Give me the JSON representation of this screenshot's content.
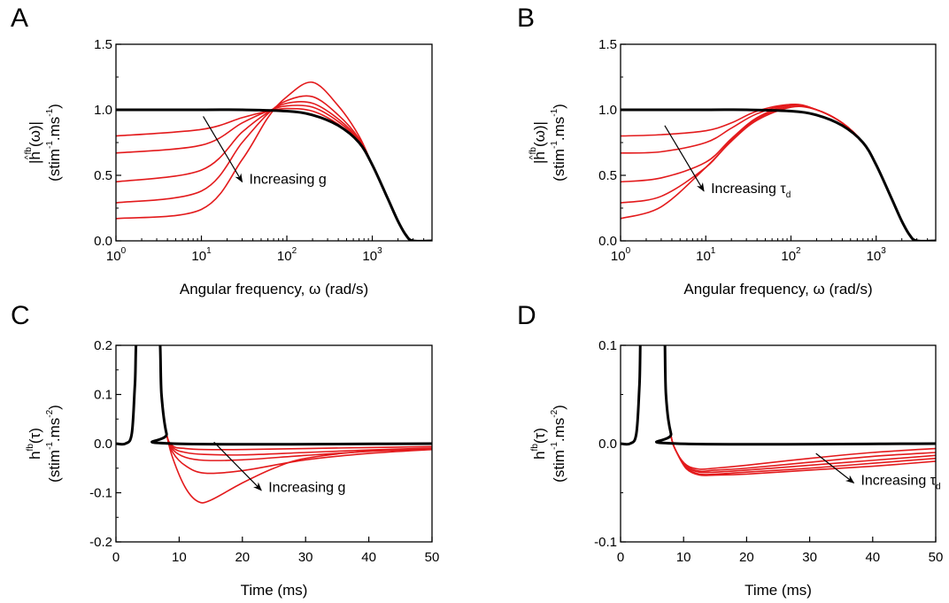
{
  "colors": {
    "baseline": "#000000",
    "family": "#e31a1c",
    "axis": "#000000"
  },
  "chart_data": [
    {
      "panel": "A",
      "type": "line",
      "xscale": "log",
      "xlim": [
        1,
        5000
      ],
      "ylim": [
        0,
        1.5
      ],
      "xticks": [
        1,
        10,
        100,
        1000
      ],
      "xtick_labels": [
        {
          "base": "10",
          "exp": "0"
        },
        {
          "base": "10",
          "exp": "1"
        },
        {
          "base": "10",
          "exp": "2"
        },
        {
          "base": "10",
          "exp": "3"
        }
      ],
      "yticks": [
        "0.0",
        "0.5",
        "1.0",
        "1.5"
      ],
      "xlabel": "Angular frequency, ω (rad/s)",
      "ylabel_line1": {
        "pre": "|h",
        "hat": "^",
        "sup": "fb",
        "post": "(ω)|"
      },
      "ylabel_line2": {
        "pre": "(stim",
        "sup1": "-1",
        "mid": ".ms",
        "sup2": "-1",
        "post": ")"
      },
      "annotation": {
        "text": "Increasing g",
        "sub": "",
        "arrow_from": [
          10.5,
          0.95
        ],
        "arrow_to": [
          30,
          0.45
        ]
      },
      "grid": false,
      "series": [
        {
          "role": "baseline",
          "x": [
            1,
            10,
            30,
            100,
            200,
            400,
            700,
            1000,
            1500,
            2000,
            2500,
            3000,
            5000
          ],
          "y": [
            1.0,
            1.0,
            1.0,
            0.99,
            0.96,
            0.88,
            0.75,
            0.58,
            0.33,
            0.15,
            0.04,
            0.0,
            0.0
          ]
        },
        {
          "role": "family",
          "x": [
            1,
            10,
            30,
            60,
            100,
            200,
            400,
            700,
            1000,
            1500,
            2000,
            2500,
            3000,
            5000
          ],
          "y": [
            0.8,
            0.85,
            0.94,
            0.99,
            1.01,
            0.99,
            0.89,
            0.75,
            0.58,
            0.33,
            0.15,
            0.04,
            0.0,
            0.0
          ]
        },
        {
          "role": "family",
          "x": [
            1,
            10,
            30,
            60,
            100,
            200,
            400,
            700,
            1000,
            1500,
            2000,
            2500,
            3000,
            5000
          ],
          "y": [
            0.67,
            0.73,
            0.9,
            0.99,
            1.03,
            1.02,
            0.91,
            0.76,
            0.58,
            0.33,
            0.15,
            0.04,
            0.0,
            0.0
          ]
        },
        {
          "role": "family",
          "x": [
            1,
            10,
            30,
            60,
            100,
            200,
            400,
            700,
            1000,
            1500,
            2000,
            2500,
            3000,
            5000
          ],
          "y": [
            0.45,
            0.54,
            0.83,
            0.98,
            1.05,
            1.05,
            0.93,
            0.77,
            0.58,
            0.33,
            0.15,
            0.04,
            0.0,
            0.0
          ]
        },
        {
          "role": "family",
          "x": [
            1,
            10,
            30,
            60,
            100,
            200,
            400,
            700,
            1000,
            1500,
            2000,
            2500,
            3000,
            5000
          ],
          "y": [
            0.29,
            0.38,
            0.75,
            0.97,
            1.07,
            1.1,
            0.96,
            0.78,
            0.58,
            0.33,
            0.15,
            0.04,
            0.0,
            0.0
          ]
        },
        {
          "role": "family",
          "x": [
            1,
            10,
            30,
            60,
            100,
            200,
            400,
            700,
            1000,
            1500,
            2000,
            2500,
            3000,
            5000
          ],
          "y": [
            0.17,
            0.24,
            0.62,
            0.94,
            1.1,
            1.21,
            1.03,
            0.8,
            0.58,
            0.33,
            0.15,
            0.04,
            0.0,
            0.0
          ]
        }
      ]
    },
    {
      "panel": "B",
      "type": "line",
      "xscale": "log",
      "xlim": [
        1,
        5000
      ],
      "ylim": [
        0,
        1.5
      ],
      "xticks": [
        1,
        10,
        100,
        1000
      ],
      "xtick_labels": [
        {
          "base": "10",
          "exp": "0"
        },
        {
          "base": "10",
          "exp": "1"
        },
        {
          "base": "10",
          "exp": "2"
        },
        {
          "base": "10",
          "exp": "3"
        }
      ],
      "yticks": [
        "0.0",
        "0.5",
        "1.0",
        "1.5"
      ],
      "xlabel": "Angular frequency, ω (rad/s)",
      "ylabel_line1": {
        "pre": "|h",
        "hat": "^",
        "sup": "fb",
        "post": "(ω)|"
      },
      "ylabel_line2": {
        "pre": "(stim",
        "sup1": "-1",
        "mid": ".ms",
        "sup2": "-1",
        "post": ")"
      },
      "annotation": {
        "text": "Increasing τ",
        "sub": "d",
        "arrow_from": [
          3.3,
          0.88
        ],
        "arrow_to": [
          9.5,
          0.38
        ]
      },
      "grid": false,
      "series": [
        {
          "role": "baseline",
          "x": [
            1,
            10,
            30,
            100,
            200,
            400,
            700,
            1000,
            1500,
            2000,
            2500,
            3000,
            5000
          ],
          "y": [
            1.0,
            1.0,
            1.0,
            0.99,
            0.96,
            0.88,
            0.75,
            0.58,
            0.33,
            0.15,
            0.04,
            0.0,
            0.0
          ]
        },
        {
          "role": "family",
          "x": [
            1,
            3,
            10,
            20,
            40,
            100,
            200,
            400,
            700,
            1000,
            1500,
            2000,
            2500,
            3000,
            5000
          ],
          "y": [
            0.8,
            0.81,
            0.84,
            0.9,
            0.99,
            1.04,
            1.0,
            0.9,
            0.75,
            0.58,
            0.33,
            0.15,
            0.04,
            0.0,
            0.0
          ]
        },
        {
          "role": "family",
          "x": [
            1,
            3,
            10,
            20,
            40,
            100,
            200,
            400,
            700,
            1000,
            1500,
            2000,
            2500,
            3000,
            5000
          ],
          "y": [
            0.67,
            0.68,
            0.75,
            0.86,
            0.97,
            1.04,
            1.0,
            0.9,
            0.75,
            0.58,
            0.33,
            0.15,
            0.04,
            0.0,
            0.0
          ]
        },
        {
          "role": "family",
          "x": [
            1,
            3,
            10,
            20,
            40,
            100,
            200,
            400,
            700,
            1000,
            1500,
            2000,
            2500,
            3000,
            5000
          ],
          "y": [
            0.45,
            0.48,
            0.6,
            0.78,
            0.94,
            1.04,
            1.0,
            0.9,
            0.75,
            0.58,
            0.33,
            0.15,
            0.04,
            0.0,
            0.0
          ]
        },
        {
          "role": "family",
          "x": [
            1,
            3,
            10,
            20,
            40,
            100,
            200,
            400,
            700,
            1000,
            1500,
            2000,
            2500,
            3000,
            5000
          ],
          "y": [
            0.29,
            0.34,
            0.56,
            0.77,
            0.93,
            1.03,
            1.0,
            0.9,
            0.75,
            0.58,
            0.33,
            0.15,
            0.04,
            0.0,
            0.0
          ]
        },
        {
          "role": "family",
          "x": [
            1,
            3,
            10,
            20,
            40,
            100,
            200,
            400,
            700,
            1000,
            1500,
            2000,
            2500,
            3000,
            5000
          ],
          "y": [
            0.17,
            0.26,
            0.56,
            0.76,
            0.92,
            1.02,
            1.0,
            0.9,
            0.75,
            0.58,
            0.33,
            0.15,
            0.04,
            0.0,
            0.0
          ]
        }
      ]
    },
    {
      "panel": "C",
      "type": "line",
      "xscale": "linear",
      "xlim": [
        0,
        50
      ],
      "ylim": [
        -0.2,
        0.2
      ],
      "xticks": [
        0,
        10,
        20,
        30,
        40,
        50
      ],
      "xtick_labels": [
        "0",
        "10",
        "20",
        "30",
        "40",
        "50"
      ],
      "yticks": [
        "-0.2",
        "-0.1",
        "0.0",
        "0.1",
        "0.2"
      ],
      "xlabel": "Time (ms)",
      "ylabel_line1": {
        "pre": "h",
        "sup": "fb",
        "post": "(τ)"
      },
      "ylabel_line2": {
        "pre": "(stim",
        "sup1": "-1",
        "mid": ".ms",
        "sup2": "-2",
        "post": ")"
      },
      "annotation": {
        "text": "Increasing g",
        "sub": "",
        "arrow_from": [
          15.5,
          0.003
        ],
        "arrow_to": [
          23,
          -0.095
        ]
      },
      "grid": false,
      "series": [
        {
          "role": "baseline",
          "x": [
            0,
            1.5,
            2.5,
            3.0,
            3.6,
            6.6,
            7.2,
            8.0,
            9.0,
            50
          ],
          "y": [
            0,
            0,
            0.02,
            0.12,
            0.25,
            0.25,
            0.1,
            0.02,
            0.0,
            0.0
          ]
        },
        {
          "role": "family",
          "x": [
            0,
            1.5,
            2.5,
            3.0,
            3.6,
            6.6,
            7.2,
            8.0,
            9.0,
            11,
            14,
            20,
            30,
            40,
            50
          ],
          "y": [
            0,
            0,
            0.02,
            0.12,
            0.25,
            0.25,
            0.1,
            0.02,
            -0.005,
            -0.01,
            -0.012,
            -0.012,
            -0.01,
            -0.008,
            -0.006
          ]
        },
        {
          "role": "family",
          "x": [
            0,
            1.5,
            2.5,
            3.0,
            3.6,
            6.6,
            7.2,
            8.0,
            9.0,
            11,
            14,
            20,
            30,
            40,
            50
          ],
          "y": [
            0,
            0,
            0.02,
            0.12,
            0.25,
            0.25,
            0.1,
            0.02,
            -0.008,
            -0.018,
            -0.022,
            -0.023,
            -0.018,
            -0.013,
            -0.009
          ]
        },
        {
          "role": "family",
          "x": [
            0,
            1.5,
            2.5,
            3.0,
            3.6,
            6.6,
            7.2,
            8.0,
            9.0,
            11,
            14,
            20,
            30,
            40,
            50
          ],
          "y": [
            0,
            0,
            0.02,
            0.12,
            0.25,
            0.25,
            0.1,
            0.02,
            -0.012,
            -0.028,
            -0.034,
            -0.033,
            -0.024,
            -0.016,
            -0.011
          ]
        },
        {
          "role": "family",
          "x": [
            0,
            1.5,
            2.5,
            3.0,
            3.6,
            6.6,
            7.2,
            8.0,
            9.0,
            11,
            14,
            20,
            30,
            40,
            50
          ],
          "y": [
            0,
            0,
            0.02,
            0.12,
            0.25,
            0.25,
            0.1,
            0.02,
            -0.018,
            -0.045,
            -0.06,
            -0.055,
            -0.033,
            -0.02,
            -0.012
          ]
        },
        {
          "role": "family",
          "x": [
            0,
            1.5,
            2.5,
            3.0,
            3.6,
            6.6,
            7.2,
            8.0,
            9.0,
            11,
            13,
            15,
            20,
            25,
            30,
            40,
            50
          ],
          "y": [
            0,
            0,
            0.02,
            0.12,
            0.25,
            0.25,
            0.1,
            0.02,
            -0.03,
            -0.09,
            -0.118,
            -0.115,
            -0.08,
            -0.05,
            -0.03,
            -0.015,
            -0.01
          ]
        }
      ]
    },
    {
      "panel": "D",
      "type": "line",
      "xscale": "linear",
      "xlim": [
        0,
        50
      ],
      "ylim": [
        -0.1,
        0.1
      ],
      "xticks": [
        0,
        10,
        20,
        30,
        40,
        50
      ],
      "xtick_labels": [
        "0",
        "10",
        "20",
        "30",
        "40",
        "50"
      ],
      "yticks": [
        "-0.1",
        "0.0",
        "0.1"
      ],
      "xlabel": "Time (ms)",
      "ylabel_line1": {
        "pre": "h",
        "sup": "fb",
        "post": "(τ)"
      },
      "ylabel_line2": {
        "pre": "(stim",
        "sup1": "-1",
        "mid": ".ms",
        "sup2": "-2",
        "post": ")"
      },
      "annotation": {
        "text": "Increasing τ",
        "sub": "d",
        "arrow_from": [
          31,
          -0.01
        ],
        "arrow_to": [
          37,
          -0.04
        ]
      },
      "grid": false,
      "series": [
        {
          "role": "baseline",
          "x": [
            0,
            1.5,
            2.5,
            3.0,
            3.6,
            6.6,
            7.2,
            8.0,
            9.0,
            50
          ],
          "y": [
            0,
            0,
            0.01,
            0.06,
            0.15,
            0.15,
            0.05,
            0.01,
            0.0,
            0.0
          ]
        },
        {
          "role": "family",
          "x": [
            0,
            1.5,
            2.5,
            3.0,
            3.6,
            6.6,
            7.2,
            8.0,
            9.0,
            10.5,
            12.5,
            15,
            20,
            30,
            40,
            50
          ],
          "y": [
            0,
            0,
            0.01,
            0.06,
            0.15,
            0.15,
            0.05,
            0.008,
            -0.01,
            -0.022,
            -0.026,
            -0.025,
            -0.022,
            -0.015,
            -0.009,
            -0.005
          ]
        },
        {
          "role": "family",
          "x": [
            0,
            1.5,
            2.5,
            3.0,
            3.6,
            6.6,
            7.2,
            8.0,
            9.0,
            10.5,
            12.5,
            15,
            20,
            30,
            40,
            50
          ],
          "y": [
            0,
            0,
            0.01,
            0.06,
            0.15,
            0.15,
            0.05,
            0.008,
            -0.01,
            -0.023,
            -0.028,
            -0.027,
            -0.025,
            -0.019,
            -0.013,
            -0.009
          ]
        },
        {
          "role": "family",
          "x": [
            0,
            1.5,
            2.5,
            3.0,
            3.6,
            6.6,
            7.2,
            8.0,
            9.0,
            10.5,
            12.5,
            15,
            20,
            30,
            40,
            50
          ],
          "y": [
            0,
            0,
            0.01,
            0.06,
            0.15,
            0.15,
            0.05,
            0.008,
            -0.01,
            -0.024,
            -0.029,
            -0.029,
            -0.027,
            -0.022,
            -0.017,
            -0.012
          ]
        },
        {
          "role": "family",
          "x": [
            0,
            1.5,
            2.5,
            3.0,
            3.6,
            6.6,
            7.2,
            8.0,
            9.0,
            10.5,
            12.5,
            15,
            20,
            30,
            40,
            50
          ],
          "y": [
            0,
            0,
            0.01,
            0.06,
            0.15,
            0.15,
            0.05,
            0.008,
            -0.01,
            -0.025,
            -0.031,
            -0.031,
            -0.029,
            -0.025,
            -0.02,
            -0.015
          ]
        },
        {
          "role": "family",
          "x": [
            0,
            1.5,
            2.5,
            3.0,
            3.6,
            6.6,
            7.2,
            8.0,
            9.0,
            10.5,
            12.5,
            15,
            20,
            30,
            40,
            50
          ],
          "y": [
            0,
            0,
            0.01,
            0.06,
            0.15,
            0.15,
            0.05,
            0.008,
            -0.01,
            -0.026,
            -0.032,
            -0.032,
            -0.031,
            -0.027,
            -0.023,
            -0.018
          ]
        }
      ]
    }
  ]
}
